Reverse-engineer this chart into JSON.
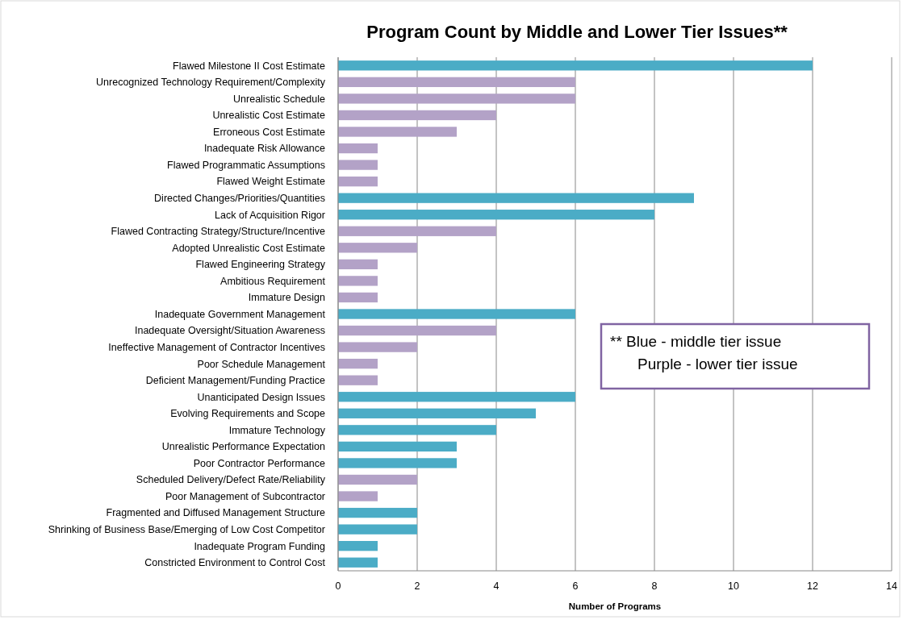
{
  "chart_data": {
    "type": "bar",
    "orientation": "horizontal",
    "title": "Program Count by  Middle and  Lower Tier Issues**",
    "xlabel": "Number of Programs",
    "categories": [
      "Flawed Milestone II Cost Estimate",
      "Unrecognized Technology Requirement/Complexity",
      "Unrealistic Schedule",
      "Unrealistic Cost Estimate",
      "Erroneous Cost Estimate",
      "Inadequate Risk Allowance",
      "Flawed Programmatic  Assumptions",
      "Flawed Weight Estimate",
      "Directed Changes/Priorities/Quantities",
      "Lack of Acquisition Rigor",
      "Flawed Contracting Strategy/Structure/Incentive",
      "Adopted Unrealistic Cost Estimate",
      "Flawed Engineering Strategy",
      "Ambitious Requirement",
      "Immature Design",
      "Inadequate Government Management",
      "Inadequate Oversight/Situation Awareness",
      "Ineffective Management of Contractor Incentives",
      "Poor Schedule Management",
      "Deficient Management/Funding Practice",
      "Unanticipated Design Issues",
      "Evolving Requirements and Scope",
      "Immature Technology",
      "Unrealistic Performance Expectation",
      "Poor Contractor Performance",
      "Scheduled Delivery/Defect Rate/Reliability",
      "Poor Management of Subcontractor",
      "Fragmented and Diffused Management Structure",
      "Shrinking of Business Base/Emerging of Low Cost Competitor",
      "Inadequate Program Funding",
      "Constricted Environment to Control Cost"
    ],
    "values": [
      12,
      6,
      6,
      4,
      3,
      1,
      1,
      1,
      9,
      8,
      4,
      2,
      1,
      1,
      1,
      6,
      4,
      2,
      1,
      1,
      6,
      5,
      4,
      3,
      3,
      2,
      1,
      2,
      2,
      1,
      1
    ],
    "colors": [
      "#4bacc6",
      "#b3a2c7",
      "#b3a2c7",
      "#b3a2c7",
      "#b3a2c7",
      "#b3a2c7",
      "#b3a2c7",
      "#b3a2c7",
      "#4bacc6",
      "#4bacc6",
      "#b3a2c7",
      "#b3a2c7",
      "#b3a2c7",
      "#b3a2c7",
      "#b3a2c7",
      "#4bacc6",
      "#b3a2c7",
      "#b3a2c7",
      "#b3a2c7",
      "#b3a2c7",
      "#4bacc6",
      "#4bacc6",
      "#4bacc6",
      "#4bacc6",
      "#4bacc6",
      "#b3a2c7",
      "#b3a2c7",
      "#4bacc6",
      "#4bacc6",
      "#4bacc6",
      "#4bacc6"
    ],
    "xlim": [
      0,
      14
    ],
    "xticks": [
      0,
      2,
      4,
      6,
      8,
      10,
      12,
      14
    ],
    "grid": "x",
    "annotations": [
      "** Blue - middle tier issue",
      "Purple - lower tier issue"
    ]
  }
}
